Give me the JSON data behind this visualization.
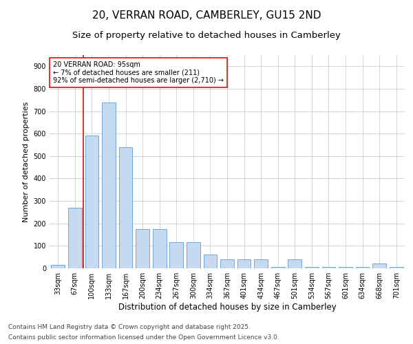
{
  "title_line1": "20, VERRAN ROAD, CAMBERLEY, GU15 2ND",
  "title_line2": "Size of property relative to detached houses in Camberley",
  "xlabel": "Distribution of detached houses by size in Camberley",
  "ylabel": "Number of detached properties",
  "categories": [
    "33sqm",
    "67sqm",
    "100sqm",
    "133sqm",
    "167sqm",
    "200sqm",
    "234sqm",
    "267sqm",
    "300sqm",
    "334sqm",
    "367sqm",
    "401sqm",
    "434sqm",
    "467sqm",
    "501sqm",
    "534sqm",
    "567sqm",
    "601sqm",
    "634sqm",
    "668sqm",
    "701sqm"
  ],
  "values": [
    15,
    270,
    590,
    740,
    540,
    175,
    175,
    115,
    115,
    60,
    40,
    40,
    40,
    5,
    40,
    5,
    5,
    5,
    5,
    20,
    5
  ],
  "bar_color": "#c5d9f1",
  "bar_edge_color": "#5b9bd5",
  "vline_x_index": 1.5,
  "vline_color": "#ff0000",
  "annotation_text": "20 VERRAN ROAD: 95sqm\n← 7% of detached houses are smaller (211)\n92% of semi-detached houses are larger (2,710) →",
  "annotation_box_color": "#ffffff",
  "annotation_box_edge": "#ff0000",
  "ylim": [
    0,
    950
  ],
  "yticks": [
    0,
    100,
    200,
    300,
    400,
    500,
    600,
    700,
    800,
    900
  ],
  "background_color": "#ffffff",
  "grid_color": "#d0d0d0",
  "footer_line1": "Contains HM Land Registry data © Crown copyright and database right 2025.",
  "footer_line2": "Contains public sector information licensed under the Open Government Licence v3.0.",
  "title_fontsize": 11,
  "subtitle_fontsize": 9.5,
  "xlabel_fontsize": 8.5,
  "ylabel_fontsize": 8,
  "tick_fontsize": 7,
  "footer_fontsize": 6.5
}
